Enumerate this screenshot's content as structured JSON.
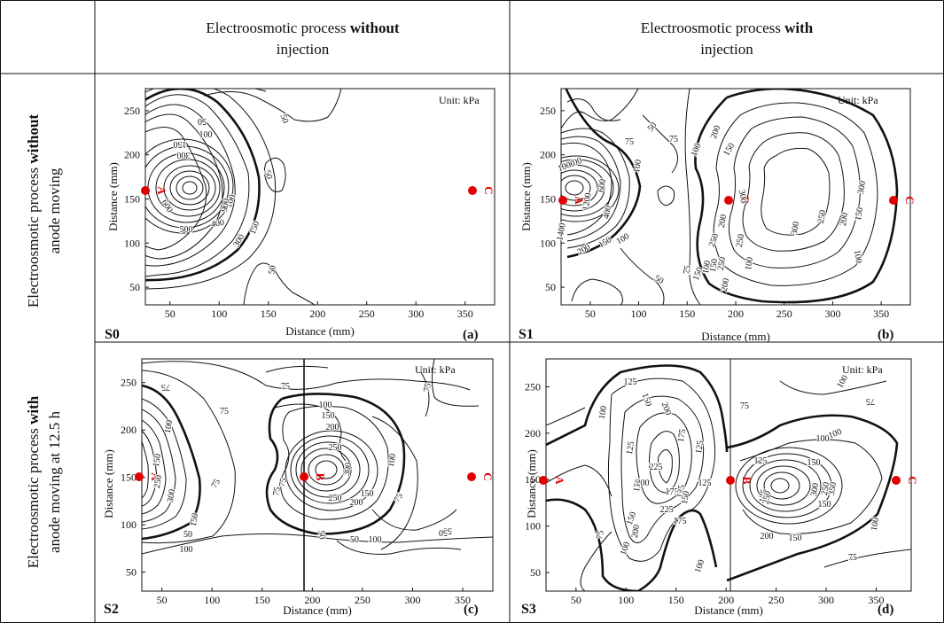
{
  "headers": {
    "col1": {
      "line1": "Electroosmotic process ",
      "bold": "without",
      "line2": "injection"
    },
    "col2": {
      "line1": "Electroosmotic process ",
      "bold": "with",
      "line2": "injection"
    },
    "row1": {
      "line1a": "Electroosmotic process ",
      "bold": "without",
      "line2": "anode moving"
    },
    "row2": {
      "line1a": "Electroosmotic process ",
      "bold": "with",
      "line2": "anode moving at 12.5 h"
    }
  },
  "colors": {
    "marker": "#e00000",
    "line": "#111111"
  },
  "panels": [
    {
      "id": "S0",
      "label": "(a)",
      "unit": "Unit: kPa",
      "xlabel": "Distance (mm)",
      "ylabel": "Distance (mm)",
      "xticks": [
        "50",
        "100",
        "150",
        "200",
        "250",
        "300",
        "350"
      ],
      "yticks": [
        "50",
        "100",
        "150",
        "200",
        "250"
      ],
      "points": [
        "A",
        "C"
      ],
      "contour_labels": [
        "50",
        "50",
        "50",
        "50",
        "100",
        "150",
        "300",
        "100",
        "150",
        "300",
        "400",
        "500",
        "600",
        "900"
      ]
    },
    {
      "id": "S1",
      "label": "(b)",
      "unit": "Unit: kPa",
      "xlabel": "Distance (mm)",
      "ylabel": "Distance (mm)",
      "xticks": [
        "50",
        "100",
        "150",
        "200",
        "250",
        "300",
        "350"
      ],
      "yticks": [
        "50",
        "100",
        "150",
        "200",
        "250"
      ],
      "points": [
        "A",
        "B",
        "C"
      ],
      "contour_labels": [
        "50",
        "75",
        "75",
        "50",
        "75",
        "100",
        "200",
        "300",
        "150",
        "250",
        "800",
        "1000",
        "1200",
        "1400",
        "600",
        "400",
        "100",
        "150",
        "200",
        "100",
        "100",
        "150",
        "200",
        "250",
        "300",
        "300",
        "250",
        "200",
        "150",
        "100",
        "150",
        "200",
        "250",
        "100"
      ]
    },
    {
      "id": "S2",
      "label": "(c)",
      "unit": "Unit: kPa",
      "xlabel": "Distance (mm)",
      "ylabel": "Distance (mm)",
      "xticks": [
        "50",
        "100",
        "150",
        "200",
        "250",
        "300",
        "350"
      ],
      "yticks": [
        "50",
        "100",
        "150",
        "200",
        "250"
      ],
      "points": [
        "A",
        "B",
        "C"
      ],
      "contour_labels": [
        "75",
        "75",
        "75",
        "50",
        "75",
        "100",
        "150",
        "250",
        "300",
        "150",
        "100",
        "75",
        "100",
        "150",
        "200",
        "250",
        "300",
        "250",
        "200",
        "150",
        "100",
        "75",
        "75",
        "50",
        "50",
        "50",
        "50",
        "100",
        "75"
      ]
    },
    {
      "id": "S3",
      "label": "(d)",
      "unit": "Unit: kPa",
      "xlabel": "Distance (mm)",
      "ylabel": "Distance (mm)",
      "xticks": [
        "50",
        "100",
        "150",
        "200",
        "250",
        "300",
        "350"
      ],
      "yticks": [
        "50",
        "100",
        "150",
        "200",
        "250"
      ],
      "points": [
        "A",
        "B",
        "C"
      ],
      "contour_labels": [
        "125",
        "150",
        "200",
        "175",
        "125",
        "100",
        "100",
        "150",
        "125",
        "225",
        "200",
        "175",
        "125",
        "150",
        "200",
        "225",
        "175",
        "150",
        "125",
        "100",
        "75",
        "75",
        "100",
        "100",
        "125",
        "150",
        "175",
        "250",
        "300",
        "350",
        "250",
        "200",
        "150",
        "150",
        "100",
        "75",
        "75",
        "100"
      ]
    }
  ]
}
